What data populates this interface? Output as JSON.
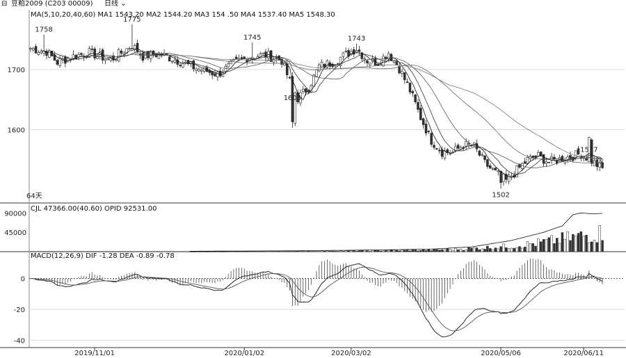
{
  "toolbar": {
    "symbol_label": "豆粕2009 (C203 00009)",
    "period_label": "日线"
  },
  "chart_data": [
    {
      "type": "candlestick",
      "panel": "price",
      "info": "MA(5,10,20,40,60)  MA1 1543.20  MA2 1544.20  MA3 154 .50  MA4 1537.40  MA5 1548.30",
      "y_ticks": [
        1600,
        1700
      ],
      "ylim": [
        1485,
        1790
      ],
      "x_ticks": [
        "2019/11/01",
        "2020/01/02",
        "2020/03/02",
        "2020/05/06",
        "2020/06/11"
      ],
      "annotations": [
        {
          "text": "1758",
          "value": 1758,
          "index": 5
        },
        {
          "text": "1775",
          "value": 1775,
          "index": 38
        },
        {
          "text": "1745",
          "value": 1745,
          "index": 83
        },
        {
          "text": "1743",
          "value": 1743,
          "index": 122
        },
        {
          "text": "1603",
          "value": 1603,
          "index": 98
        },
        {
          "text": "1577",
          "value": 1577,
          "index": 209
        },
        {
          "text": "1502",
          "value": 1502,
          "index": 176
        }
      ],
      "corner_note": "64天",
      "anchors": [
        [
          0,
          1735
        ],
        [
          6,
          1730
        ],
        [
          10,
          1712
        ],
        [
          16,
          1722
        ],
        [
          22,
          1728
        ],
        [
          30,
          1716
        ],
        [
          38,
          1740
        ],
        [
          42,
          1722
        ],
        [
          48,
          1726
        ],
        [
          55,
          1715
        ],
        [
          62,
          1702
        ],
        [
          70,
          1692
        ],
        [
          76,
          1710
        ],
        [
          82,
          1722
        ],
        [
          88,
          1724
        ],
        [
          94,
          1715
        ],
        [
          97,
          1680
        ],
        [
          100,
          1652
        ],
        [
          104,
          1670
        ],
        [
          108,
          1705
        ],
        [
          113,
          1712
        ],
        [
          118,
          1725
        ],
        [
          122,
          1735
        ],
        [
          126,
          1715
        ],
        [
          130,
          1712
        ],
        [
          134,
          1728
        ],
        [
          138,
          1702
        ],
        [
          142,
          1665
        ],
        [
          146,
          1620
        ],
        [
          150,
          1582
        ],
        [
          154,
          1563
        ],
        [
          158,
          1562
        ],
        [
          162,
          1575
        ],
        [
          166,
          1572
        ],
        [
          170,
          1544
        ],
        [
          174,
          1528
        ],
        [
          178,
          1515
        ],
        [
          182,
          1532
        ],
        [
          186,
          1550
        ],
        [
          190,
          1556
        ],
        [
          194,
          1546
        ],
        [
          198,
          1551
        ],
        [
          202,
          1555
        ],
        [
          206,
          1560
        ],
        [
          210,
          1548
        ],
        [
          214,
          1535
        ]
      ],
      "ma_periods": [
        5,
        10,
        20,
        40,
        60
      ]
    },
    {
      "type": "bar",
      "panel": "open_interest",
      "info": "CJL  47366.00(40.60)  OPID 92531.00",
      "y_ticks": [
        45000,
        90000
      ],
      "ylim": [
        0,
        97000
      ],
      "anchors": [
        [
          0,
          0
        ],
        [
          60,
          0
        ],
        [
          100,
          900
        ],
        [
          130,
          2400
        ],
        [
          150,
          3500
        ],
        [
          160,
          6000
        ],
        [
          170,
          9000
        ],
        [
          180,
          13000
        ],
        [
          190,
          20000
        ],
        [
          200,
          30000
        ],
        [
          214,
          44000
        ]
      ],
      "oi_anchors": [
        [
          0,
          0
        ],
        [
          59,
          0
        ],
        [
          60,
          1000
        ],
        [
          100,
          2000
        ],
        [
          130,
          4000
        ],
        [
          150,
          6000
        ],
        [
          165,
          11000
        ],
        [
          180,
          26000
        ],
        [
          192,
          45000
        ],
        [
          199,
          60000
        ],
        [
          203,
          86000
        ],
        [
          206,
          90000
        ],
        [
          210,
          88000
        ],
        [
          214,
          89000
        ]
      ]
    },
    {
      "type": "macd",
      "panel": "macd",
      "info": "MACD(12,26,9)  DIF -1.28  DEA -0.89  -0.78",
      "y_ticks": [
        0,
        -20,
        -40
      ],
      "ylim": [
        -42,
        12
      ]
    }
  ]
}
